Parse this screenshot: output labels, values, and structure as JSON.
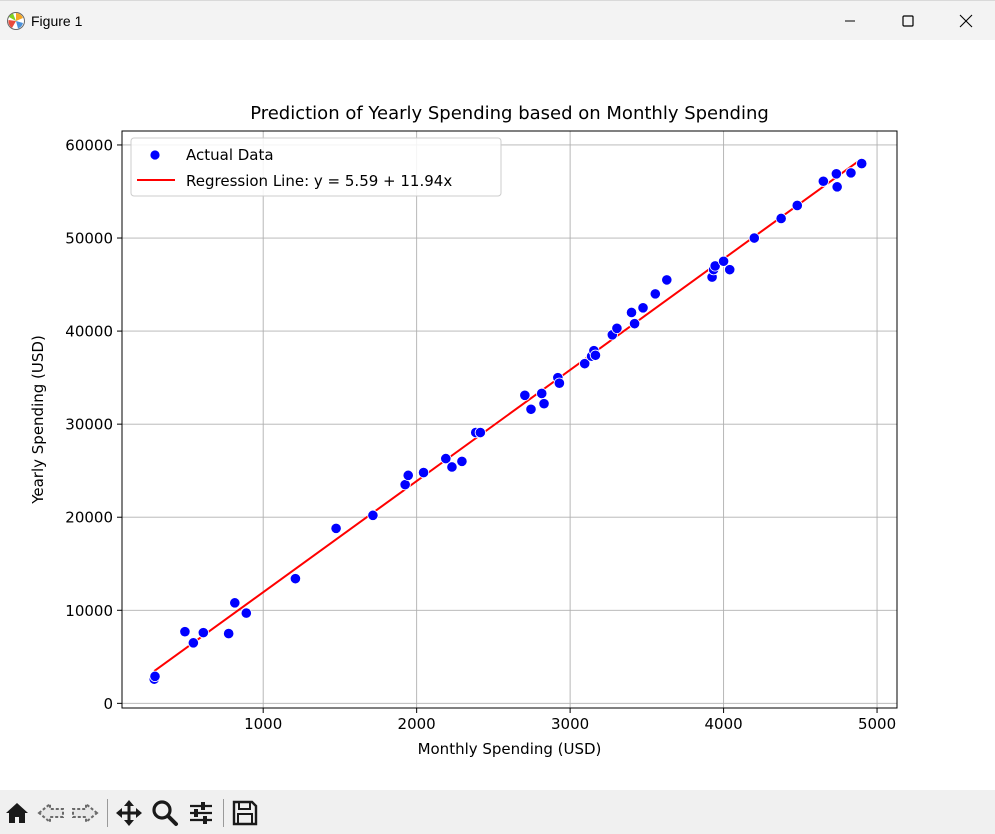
{
  "window": {
    "title": "Figure 1",
    "icons": {
      "app": "matplotlib-logo-icon",
      "minimize": "minimize-icon",
      "maximize": "maximize-icon",
      "close": "close-icon"
    }
  },
  "toolbar": {
    "buttons": [
      "home-icon",
      "back-arrow-icon",
      "forward-arrow-icon",
      "pan-move-icon",
      "zoom-magnifier-icon",
      "configure-subplots-icon",
      "save-floppy-icon"
    ]
  },
  "chart_data": {
    "type": "scatter",
    "title": "Prediction of Yearly Spending based on Monthly Spending",
    "xlabel": "Monthly Spending (USD)",
    "ylabel": "Yearly Spending (USD)",
    "xlim": [
      80,
      5130
    ],
    "ylim": [
      -500,
      61500
    ],
    "xticks": [
      1000,
      2000,
      3000,
      4000,
      5000
    ],
    "xtick_labels": [
      "1000",
      "2000",
      "3000",
      "4000",
      "5000"
    ],
    "yticks": [
      0,
      10000,
      20000,
      30000,
      40000,
      50000,
      60000
    ],
    "ytick_labels": [
      "0",
      "10000",
      "20000",
      "30000",
      "40000",
      "50000",
      "60000"
    ],
    "grid": true,
    "legend": {
      "placement": "upper-left",
      "entries": [
        "Actual Data",
        "Regression Line: y = 5.59 + 11.94x"
      ]
    },
    "colors": {
      "points": "#0000ff",
      "line": "#ff0000"
    },
    "series": [
      {
        "name": "Actual Data",
        "type": "scatter",
        "x": [
          290,
          295,
          490,
          545,
          610,
          775,
          815,
          890,
          1210,
          1475,
          1715,
          1925,
          1945,
          2045,
          2190,
          2230,
          2295,
          2385,
          2415,
          2705,
          2745,
          2815,
          2830,
          2920,
          2930,
          3095,
          3140,
          3155,
          3165,
          3275,
          3305,
          3400,
          3420,
          3475,
          3555,
          3630,
          3925,
          3935,
          3945,
          4000,
          4040,
          4200,
          4375,
          4480,
          4650,
          4735,
          4740,
          4830,
          4900
        ],
        "y": [
          2600,
          2900,
          7700,
          6500,
          7600,
          7500,
          10800,
          9700,
          13400,
          18800,
          20200,
          23500,
          24500,
          24800,
          26300,
          25400,
          26000,
          29100,
          29100,
          33100,
          31600,
          33300,
          32200,
          35000,
          34400,
          36500,
          37300,
          37900,
          37400,
          39600,
          40300,
          42000,
          40800,
          42500,
          44000,
          45500,
          45800,
          46600,
          47000,
          47500,
          46600,
          50000,
          52100,
          53500,
          56100,
          56900,
          55500,
          57000,
          58000
        ]
      },
      {
        "name": "Regression Line: y = 5.59 + 11.94x",
        "type": "line",
        "x": [
          290,
          4900
        ],
        "y": [
          3468,
          58511
        ]
      }
    ]
  }
}
